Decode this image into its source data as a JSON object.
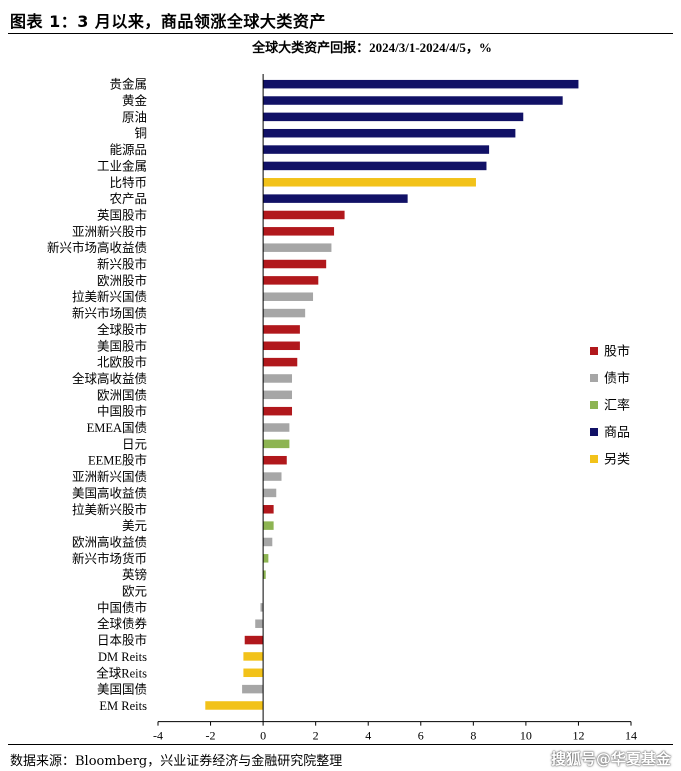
{
  "header": {
    "figure_title": "图表 1：3 月以来，商品领涨全球大类资产"
  },
  "footer": {
    "source": "数据来源：Bloomberg，兴业证券经济与金融研究院整理",
    "watermark": "搜狐号@华夏基金"
  },
  "colors": {
    "股市": "#b1181c",
    "债市": "#a6a6a6",
    "汇率": "#8db452",
    "商品": "#111166",
    "另类": "#f2c21a"
  },
  "chart_data": {
    "type": "bar",
    "orientation": "horizontal",
    "title": "全球大类资产回报：2024/3/1-2024/4/5，%",
    "xlim": [
      -4,
      14
    ],
    "xticks": [
      -4,
      -2,
      0,
      2,
      4,
      6,
      8,
      10,
      12,
      14
    ],
    "grid": false,
    "legend_position": "right",
    "legend": [
      "股市",
      "债市",
      "汇率",
      "商品",
      "另类"
    ],
    "bars": [
      {
        "label": "贵金属",
        "value": 12.0,
        "group": "商品"
      },
      {
        "label": "黄金",
        "value": 11.4,
        "group": "商品"
      },
      {
        "label": "原油",
        "value": 9.9,
        "group": "商品"
      },
      {
        "label": "铜",
        "value": 9.6,
        "group": "商品"
      },
      {
        "label": "能源品",
        "value": 8.6,
        "group": "商品"
      },
      {
        "label": "工业金属",
        "value": 8.5,
        "group": "商品"
      },
      {
        "label": "比特币",
        "value": 8.1,
        "group": "另类"
      },
      {
        "label": "农产品",
        "value": 5.5,
        "group": "商品"
      },
      {
        "label": "英国股市",
        "value": 3.1,
        "group": "股市"
      },
      {
        "label": "亚洲新兴股市",
        "value": 2.7,
        "group": "股市"
      },
      {
        "label": "新兴市场高收益债",
        "value": 2.6,
        "group": "债市"
      },
      {
        "label": "新兴股市",
        "value": 2.4,
        "group": "股市"
      },
      {
        "label": "欧洲股市",
        "value": 2.1,
        "group": "股市"
      },
      {
        "label": "拉美新兴国债",
        "value": 1.9,
        "group": "债市"
      },
      {
        "label": "新兴市场国债",
        "value": 1.6,
        "group": "债市"
      },
      {
        "label": "全球股市",
        "value": 1.4,
        "group": "股市"
      },
      {
        "label": "美国股市",
        "value": 1.4,
        "group": "股市"
      },
      {
        "label": "北欧股市",
        "value": 1.3,
        "group": "股市"
      },
      {
        "label": "全球高收益债",
        "value": 1.1,
        "group": "债市"
      },
      {
        "label": "欧洲国债",
        "value": 1.1,
        "group": "债市"
      },
      {
        "label": "中国股市",
        "value": 1.1,
        "group": "股市"
      },
      {
        "label": "EMEA国债",
        "value": 1.0,
        "group": "债市"
      },
      {
        "label": "日元",
        "value": 1.0,
        "group": "汇率"
      },
      {
        "label": "EEME股市",
        "value": 0.9,
        "group": "股市"
      },
      {
        "label": "亚洲新兴国债",
        "value": 0.7,
        "group": "债市"
      },
      {
        "label": "美国高收益债",
        "value": 0.5,
        "group": "债市"
      },
      {
        "label": "拉美新兴股市",
        "value": 0.4,
        "group": "股市"
      },
      {
        "label": "美元",
        "value": 0.4,
        "group": "汇率"
      },
      {
        "label": "欧洲高收益债",
        "value": 0.35,
        "group": "债市"
      },
      {
        "label": "新兴市场货币",
        "value": 0.2,
        "group": "汇率"
      },
      {
        "label": "英镑",
        "value": 0.1,
        "group": "汇率"
      },
      {
        "label": "欧元",
        "value": 0.0,
        "group": "汇率"
      },
      {
        "label": "中国债市",
        "value": -0.1,
        "group": "债市"
      },
      {
        "label": "全球债券",
        "value": -0.3,
        "group": "债市"
      },
      {
        "label": "日本股市",
        "value": -0.7,
        "group": "股市"
      },
      {
        "label": "DM Reits",
        "value": -0.75,
        "group": "另类"
      },
      {
        "label": "全球Reits",
        "value": -0.75,
        "group": "另类"
      },
      {
        "label": "美国国债",
        "value": -0.8,
        "group": "债市"
      },
      {
        "label": "EM Reits",
        "value": -2.2,
        "group": "另类"
      }
    ]
  }
}
